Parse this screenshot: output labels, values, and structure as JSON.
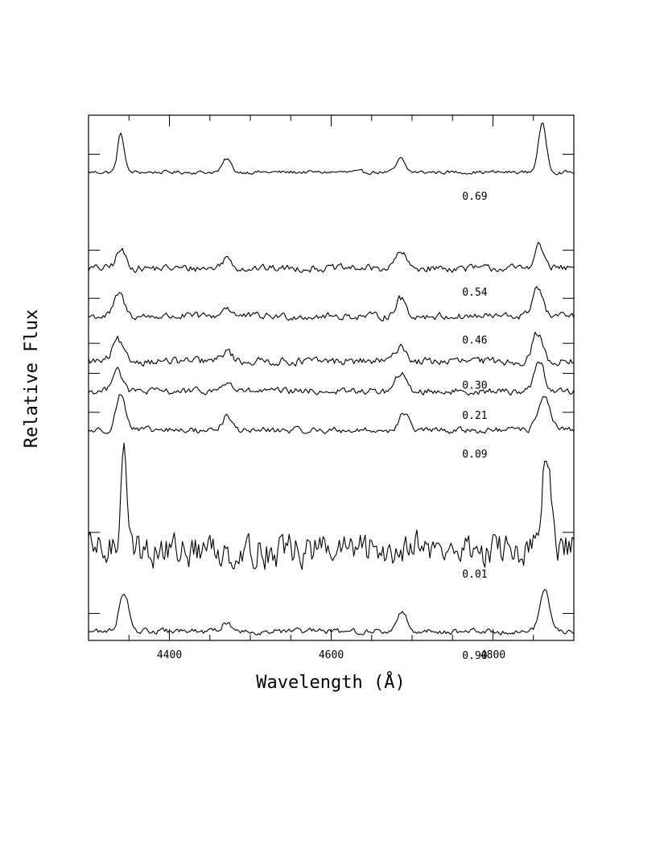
{
  "chart_data": {
    "type": "line",
    "title": "",
    "xlabel": "Wavelength (Å)",
    "ylabel": "Relative Flux",
    "xlim": [
      4300,
      4900
    ],
    "x_ticks": [
      4400,
      4600,
      4800
    ],
    "x_tick_labels": [
      "4400",
      "4600",
      "4800"
    ],
    "x_minor_step": 50,
    "grid": false,
    "legend": "none",
    "series": [
      {
        "name": "0.69",
        "offset": 15.6,
        "noise": 0.06,
        "lines": [
          {
            "center": 4340,
            "amp": 1.3,
            "width": 4
          },
          {
            "center": 4471,
            "amp": 0.45,
            "width": 5
          },
          {
            "center": 4686,
            "amp": 0.45,
            "width": 5
          },
          {
            "center": 4861,
            "amp": 1.6,
            "width": 5
          }
        ]
      },
      {
        "name": "0.54",
        "offset": 12.4,
        "noise": 0.12,
        "lines": [
          {
            "center": 4340,
            "amp": 0.6,
            "width": 6
          },
          {
            "center": 4471,
            "amp": 0.35,
            "width": 6
          },
          {
            "center": 4686,
            "amp": 0.55,
            "width": 6
          },
          {
            "center": 4857,
            "amp": 0.75,
            "width": 6
          }
        ]
      },
      {
        "name": "0.46",
        "offset": 10.8,
        "noise": 0.12,
        "lines": [
          {
            "center": 4338,
            "amp": 0.75,
            "width": 6
          },
          {
            "center": 4471,
            "amp": 0.3,
            "width": 6
          },
          {
            "center": 4686,
            "amp": 0.6,
            "width": 6
          },
          {
            "center": 4855,
            "amp": 1.0,
            "width": 6
          }
        ]
      },
      {
        "name": "0.30",
        "offset": 9.3,
        "noise": 0.13,
        "lines": [
          {
            "center": 4336,
            "amp": 0.7,
            "width": 6
          },
          {
            "center": 4471,
            "amp": 0.35,
            "width": 6
          },
          {
            "center": 4686,
            "amp": 0.55,
            "width": 6
          },
          {
            "center": 4855,
            "amp": 0.95,
            "width": 6
          }
        ]
      },
      {
        "name": "0.21",
        "offset": 8.3,
        "noise": 0.11,
        "lines": [
          {
            "center": 4335,
            "amp": 0.8,
            "width": 6
          },
          {
            "center": 4471,
            "amp": 0.3,
            "width": 6
          },
          {
            "center": 4686,
            "amp": 0.6,
            "width": 6
          },
          {
            "center": 4857,
            "amp": 1.05,
            "width": 6
          }
        ]
      },
      {
        "name": "0.09",
        "offset": 7.0,
        "noise": 0.1,
        "lines": [
          {
            "center": 4340,
            "amp": 1.2,
            "width": 6
          },
          {
            "center": 4471,
            "amp": 0.45,
            "width": 6
          },
          {
            "center": 4690,
            "amp": 0.55,
            "width": 6
          },
          {
            "center": 4863,
            "amp": 1.2,
            "width": 7
          }
        ]
      },
      {
        "name": "0.01",
        "offset": 3.0,
        "noise": 0.55,
        "lines": [
          {
            "center": 4344,
            "amp": 3.8,
            "width": 4
          },
          {
            "center": 4700,
            "amp": 0.5,
            "width": 6
          },
          {
            "center": 4866,
            "amp": 3.2,
            "width": 5
          }
        ]
      },
      {
        "name": "0.90",
        "offset": 0.3,
        "noise": 0.09,
        "lines": [
          {
            "center": 4344,
            "amp": 1.3,
            "width": 6
          },
          {
            "center": 4471,
            "amp": 0.3,
            "width": 6
          },
          {
            "center": 4688,
            "amp": 0.65,
            "width": 6
          },
          {
            "center": 4864,
            "amp": 1.4,
            "width": 6
          }
        ]
      }
    ]
  }
}
